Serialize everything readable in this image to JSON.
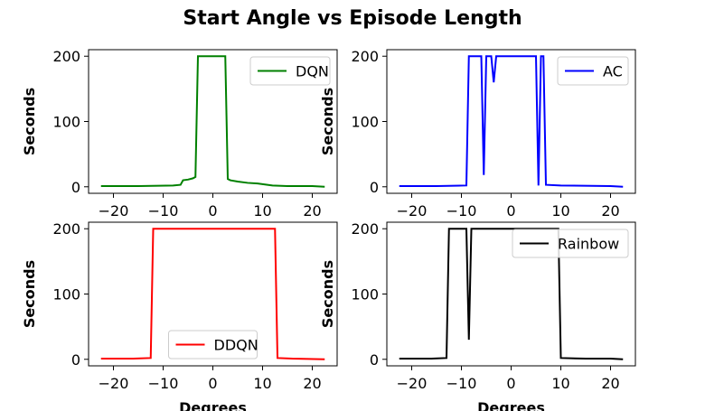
{
  "title": "Start Angle vs Episode Length",
  "chart_data": [
    {
      "type": "line",
      "series": [
        {
          "name": "DQN",
          "color": "#008000",
          "x": [
            -22.5,
            -15,
            -8,
            -6.5,
            -6,
            -5,
            -4,
            -3.5,
            -3,
            2.5,
            3,
            3.5,
            5,
            7,
            9,
            10,
            11,
            12,
            15,
            20,
            22.5
          ],
          "y": [
            1,
            1,
            2,
            3,
            10,
            11,
            13,
            15,
            200,
            200,
            12,
            10,
            8,
            6,
            5,
            4,
            3,
            2,
            1,
            1,
            0
          ]
        }
      ],
      "xlabel": "",
      "ylabel": "Seconds",
      "xticks": [
        -20,
        -10,
        0,
        10,
        20
      ],
      "yticks": [
        0,
        100,
        200
      ],
      "xlim": [
        -25,
        25
      ],
      "ylim": [
        -10,
        210
      ],
      "legend_position": "upper right"
    },
    {
      "type": "line",
      "series": [
        {
          "name": "AC",
          "color": "#0000ff",
          "x": [
            -22.5,
            -15,
            -9,
            -8.5,
            -6,
            -5.5,
            -5,
            -4,
            -3.5,
            -3,
            -2.5,
            5,
            5.5,
            6,
            6.5,
            7,
            10,
            20,
            22.5
          ],
          "y": [
            1,
            1,
            2,
            200,
            200,
            18,
            200,
            200,
            160,
            200,
            200,
            200,
            2,
            200,
            200,
            3,
            2,
            1,
            0
          ]
        }
      ],
      "xlabel": "",
      "ylabel": "Seconds",
      "xticks": [
        -20,
        -10,
        0,
        10,
        20
      ],
      "yticks": [
        0,
        100,
        200
      ],
      "xlim": [
        -25,
        25
      ],
      "ylim": [
        -10,
        210
      ],
      "legend_position": "upper right"
    },
    {
      "type": "line",
      "series": [
        {
          "name": "DDQN",
          "color": "#ff0000",
          "x": [
            -22.5,
            -16,
            -12.5,
            -12,
            12.5,
            13,
            16,
            22.5
          ],
          "y": [
            1,
            1,
            2,
            200,
            200,
            2,
            1,
            0
          ]
        }
      ],
      "xlabel": "Degrees",
      "ylabel": "Seconds",
      "xticks": [
        -20,
        -10,
        0,
        10,
        20
      ],
      "yticks": [
        0,
        100,
        200
      ],
      "xlim": [
        -25,
        25
      ],
      "ylim": [
        -10,
        210
      ],
      "legend_position": "lower center"
    },
    {
      "type": "line",
      "series": [
        {
          "name": "Rainbow",
          "color": "#000000",
          "x": [
            -22.5,
            -16,
            -13,
            -12.5,
            -9,
            -8.5,
            -8,
            -7.5,
            9.5,
            10,
            15,
            20,
            22.5
          ],
          "y": [
            1,
            1,
            2,
            200,
            200,
            30,
            200,
            200,
            200,
            2,
            1,
            1,
            0
          ]
        }
      ],
      "xlabel": "Degrees",
      "ylabel": "Seconds",
      "xticks": [
        -20,
        -10,
        0,
        10,
        20
      ],
      "yticks": [
        0,
        100,
        200
      ],
      "xlim": [
        -25,
        25
      ],
      "ylim": [
        -10,
        210
      ],
      "legend_position": "upper right"
    }
  ]
}
